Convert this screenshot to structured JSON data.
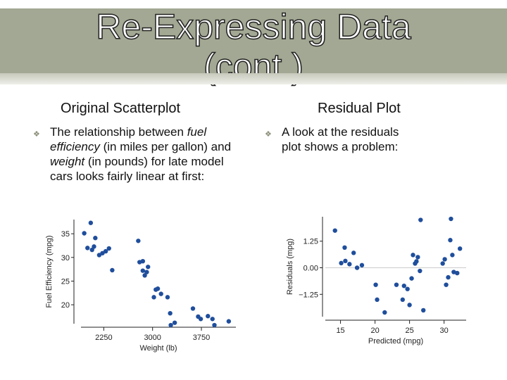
{
  "slide": {
    "title": "Re-Expressing Data\n(cont.)",
    "left": {
      "heading": "Original Scatterplot",
      "bullet_parts": [
        "The relationship between ",
        "fuel efficiency",
        " (in miles per gallon) and ",
        "weight",
        " (in pounds) for late model cars looks fairly linear at first:"
      ]
    },
    "right": {
      "heading": "Residual Plot",
      "bullet": "A look at the residuals plot shows a problem:"
    },
    "colors": {
      "title_band": "#a2a893",
      "points": "#1f4e9c",
      "bullet": "#8a8f78"
    },
    "bullet_icon": "decorative-bullet"
  },
  "chart_data": [
    {
      "type": "scatter",
      "title": "",
      "xlabel": "Weight (lb)",
      "ylabel": "Fuel Efficiency (mpg)",
      "xticks": [
        2250,
        3000,
        3750
      ],
      "yticks": [
        20,
        25,
        30,
        35
      ],
      "xlim": [
        1900,
        4280
      ],
      "ylim": [
        16,
        38
      ],
      "grid": false,
      "points": [
        [
          2050,
          37.3
        ],
        [
          1950,
          35.1
        ],
        [
          2120,
          34.1
        ],
        [
          2000,
          32.0
        ],
        [
          2070,
          31.6
        ],
        [
          2100,
          32.3
        ],
        [
          2180,
          30.5
        ],
        [
          2230,
          30.9
        ],
        [
          2280,
          31.3
        ],
        [
          2330,
          31.9
        ],
        [
          2380,
          27.3
        ],
        [
          2780,
          33.5
        ],
        [
          2800,
          29.0
        ],
        [
          2850,
          27.2
        ],
        [
          2880,
          26.2
        ],
        [
          2910,
          26.9
        ],
        [
          2930,
          28.0
        ],
        [
          2850,
          29.2
        ],
        [
          3020,
          21.6
        ],
        [
          3050,
          23.2
        ],
        [
          3080,
          23.4
        ],
        [
          3130,
          22.3
        ],
        [
          3230,
          21.6
        ],
        [
          3270,
          18.2
        ],
        [
          3340,
          16.2
        ],
        [
          3620,
          19.2
        ],
        [
          3700,
          17.5
        ],
        [
          3740,
          17.0
        ],
        [
          3850,
          17.6
        ],
        [
          3920,
          17.0
        ],
        [
          3950,
          15.7
        ],
        [
          4170,
          16.5
        ],
        [
          3280,
          15.7
        ]
      ]
    },
    {
      "type": "scatter",
      "title": "",
      "xlabel": "Predicted (mpg)",
      "ylabel": "Residuals (mpg)",
      "xticks": [
        15,
        20,
        25,
        30
      ],
      "xtick_labels": [
        "15",
        "20",
        "25",
        "30"
      ],
      "yticks": [
        1.25,
        0.0,
        -1.25
      ],
      "ytick_labels": [
        "1.25",
        "0.00",
        "−1.25"
      ],
      "xlim": [
        12.8,
        33.2
      ],
      "ylim": [
        -2.3,
        2.4
      ],
      "grid": false,
      "points": [
        [
          14.2,
          1.75
        ],
        [
          15.1,
          0.22
        ],
        [
          15.6,
          0.95
        ],
        [
          15.7,
          0.32
        ],
        [
          16.3,
          0.17
        ],
        [
          16.9,
          0.7
        ],
        [
          17.4,
          0.0
        ],
        [
          18.1,
          0.12
        ],
        [
          20.1,
          -0.8
        ],
        [
          20.3,
          -1.5
        ],
        [
          21.4,
          -2.1
        ],
        [
          23.1,
          -0.8
        ],
        [
          24.0,
          -1.5
        ],
        [
          24.2,
          -0.85
        ],
        [
          24.7,
          -1.0
        ],
        [
          25.0,
          -1.75
        ],
        [
          25.3,
          -0.5
        ],
        [
          25.5,
          0.6
        ],
        [
          25.8,
          0.2
        ],
        [
          26.0,
          0.3
        ],
        [
          26.2,
          0.5
        ],
        [
          26.5,
          -0.15
        ],
        [
          27.0,
          -2.0
        ],
        [
          26.6,
          2.25
        ],
        [
          29.8,
          0.2
        ],
        [
          30.1,
          0.4
        ],
        [
          30.3,
          -0.8
        ],
        [
          30.6,
          -0.45
        ],
        [
          30.9,
          1.3
        ],
        [
          31.0,
          2.3
        ],
        [
          31.2,
          0.6
        ],
        [
          31.4,
          -0.2
        ],
        [
          31.9,
          -0.25
        ],
        [
          32.3,
          0.9
        ]
      ]
    }
  ]
}
